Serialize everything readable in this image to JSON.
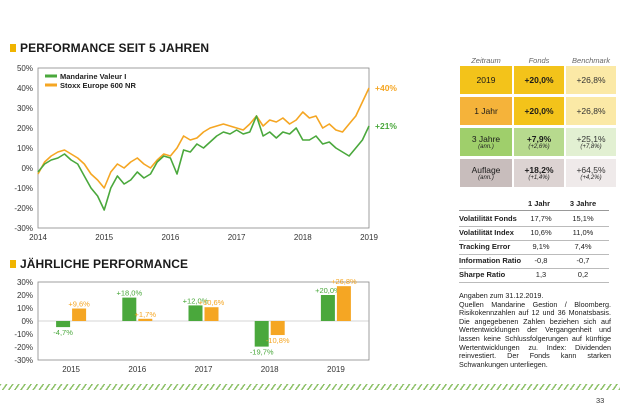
{
  "sections": {
    "performance_title": "PERFORMANCE SEIT 5 JAHREN",
    "annual_title": "JÄHRLICHE PERFORMANCE"
  },
  "colors": {
    "fund": "#4aa83c",
    "benchmark": "#f5a623",
    "accent": "#f0b400"
  },
  "chart_data": [
    {
      "type": "line",
      "y_ticks": [
        "50%",
        "40%",
        "30%",
        "20%",
        "10%",
        "0%",
        "-10%",
        "-20%",
        "-30%"
      ],
      "x_ticks": [
        "2014",
        "2015",
        "2016",
        "2017",
        "2018",
        "2019"
      ],
      "ylim": [
        -30,
        50
      ],
      "legend": "top-left",
      "grid": false,
      "series": [
        {
          "name": "Mandarine Valeur I",
          "color": "#4aa83c",
          "end_label": "+21%",
          "x": [
            2014.0,
            2014.1,
            2014.2,
            2014.3,
            2014.4,
            2014.5,
            2014.6,
            2014.7,
            2014.8,
            2014.9,
            2015.0,
            2015.1,
            2015.2,
            2015.3,
            2015.4,
            2015.5,
            2015.6,
            2015.7,
            2015.8,
            2015.9,
            2016.0,
            2016.1,
            2016.2,
            2016.3,
            2016.4,
            2016.5,
            2016.6,
            2016.7,
            2016.8,
            2016.9,
            2017.0,
            2017.1,
            2017.2,
            2017.3,
            2017.4,
            2017.5,
            2017.6,
            2017.7,
            2017.8,
            2017.9,
            2018.0,
            2018.1,
            2018.2,
            2018.3,
            2018.4,
            2018.5,
            2018.6,
            2018.7,
            2018.8,
            2018.9,
            2019.0
          ],
          "y": [
            -2,
            2,
            4,
            5,
            7,
            4,
            2,
            -4,
            -10,
            -14,
            -21,
            -10,
            -4,
            -8,
            -6,
            -2,
            -5,
            -3,
            3,
            6,
            5,
            -3,
            9,
            8,
            12,
            10,
            13,
            16,
            18,
            17,
            19,
            17,
            18,
            26,
            16,
            18,
            15,
            18,
            17,
            20,
            14,
            14,
            16,
            12,
            13,
            10,
            8,
            6,
            10,
            14,
            21
          ]
        },
        {
          "name": "Stoxx Europe 600 NR",
          "color": "#f5a623",
          "end_label": "+40%",
          "x": [
            2014.0,
            2014.1,
            2014.2,
            2014.3,
            2014.4,
            2014.5,
            2014.6,
            2014.7,
            2014.8,
            2014.9,
            2015.0,
            2015.1,
            2015.2,
            2015.3,
            2015.4,
            2015.5,
            2015.6,
            2015.7,
            2015.8,
            2015.9,
            2016.0,
            2016.1,
            2016.2,
            2016.3,
            2016.4,
            2016.5,
            2016.6,
            2016.7,
            2016.8,
            2016.9,
            2017.0,
            2017.1,
            2017.2,
            2017.3,
            2017.4,
            2017.5,
            2017.6,
            2017.7,
            2017.8,
            2017.9,
            2018.0,
            2018.1,
            2018.2,
            2018.3,
            2018.4,
            2018.5,
            2018.6,
            2018.7,
            2018.8,
            2018.9,
            2019.0
          ],
          "y": [
            -3,
            3,
            6,
            8,
            9,
            7,
            5,
            2,
            -3,
            -6,
            -10,
            -2,
            2,
            0,
            3,
            5,
            2,
            0,
            4,
            7,
            6,
            10,
            16,
            14,
            15,
            18,
            20,
            21,
            22,
            21,
            20,
            19,
            22,
            26,
            21,
            24,
            23,
            25,
            22,
            24,
            28,
            25,
            26,
            20,
            22,
            19,
            18,
            22,
            26,
            33,
            40
          ]
        }
      ]
    },
    {
      "type": "bar",
      "y_ticks": [
        "30%",
        "20%",
        "10%",
        "0%",
        "-10%",
        "-20%",
        "-30%"
      ],
      "ylim": [
        -30,
        30
      ],
      "categories": [
        "2015",
        "2016",
        "2017",
        "2018",
        "2019"
      ],
      "series": [
        {
          "name": "Fonds",
          "color": "#4aa83c",
          "values": [
            -4.7,
            18.0,
            12.0,
            -19.7,
            20.0
          ],
          "labels": [
            "-4,7%",
            "+18,0%",
            "+12,0%",
            "-19,7%",
            "+20,0%"
          ]
        },
        {
          "name": "Benchmark",
          "color": "#f5a623",
          "values": [
            9.6,
            1.7,
            10.6,
            -10.8,
            26.8
          ],
          "labels": [
            "+9,6%",
            "+1,7%",
            "+10,6%",
            "-10,8%",
            "+26,8%"
          ]
        }
      ]
    }
  ],
  "table": {
    "headers": [
      "Zeitraum",
      "Fonds",
      "Benchmark"
    ],
    "rows": [
      {
        "label": "2019",
        "sub": "",
        "fund": "+20,0%",
        "fund_sub": "",
        "bench": "+26,8%",
        "bench_sub": ""
      },
      {
        "label": "1 Jahr",
        "sub": "",
        "fund": "+20,0%",
        "fund_sub": "",
        "bench": "+26,8%",
        "bench_sub": ""
      },
      {
        "label": "3 Jahre",
        "sub": "(ann.)",
        "fund": "+7,9%",
        "fund_sub": "(+2,6%)",
        "bench": "+25,1%",
        "bench_sub": "(+7,8%)"
      },
      {
        "label": "Auflage",
        "sub": "(ann.)",
        "fund": "+18,2%",
        "fund_sub": "(+1,4%)",
        "bench": "+64,5%",
        "bench_sub": "(+4,2%)"
      }
    ]
  },
  "stats": {
    "headers": [
      "1 Jahr",
      "3 Jahre"
    ],
    "rows": [
      {
        "label": "Volatilität Fonds",
        "v1": "17,7%",
        "v3": "15,1%"
      },
      {
        "label": "Volatilität Index",
        "v1": "10,6%",
        "v3": "11,0%"
      },
      {
        "label": "Tracking Error",
        "v1": "9,1%",
        "v3": "7,4%"
      },
      {
        "label": "Information Ratio",
        "v1": "-0,8",
        "v3": "-0,7"
      },
      {
        "label": "Sharpe Ratio",
        "v1": "1,3",
        "v3": "0,2"
      }
    ]
  },
  "note": {
    "line1": "Angaben zum 31.12.2019.",
    "body": "Quellen Mandarine Gestion / Bloomberg. Risikokennzahlen auf 12 und 36 Monatsbasis. Die angegebenen Zahlen beziehen sich auf Wertentwicklungen der Vergangenheit und lassen keine Schlussfolgerungen auf künftige Wertentwicklungen zu. Index: Dividenden reinvestiert. Der Fonds kann starken Schwankungen unterliegen."
  },
  "page_number": "33"
}
